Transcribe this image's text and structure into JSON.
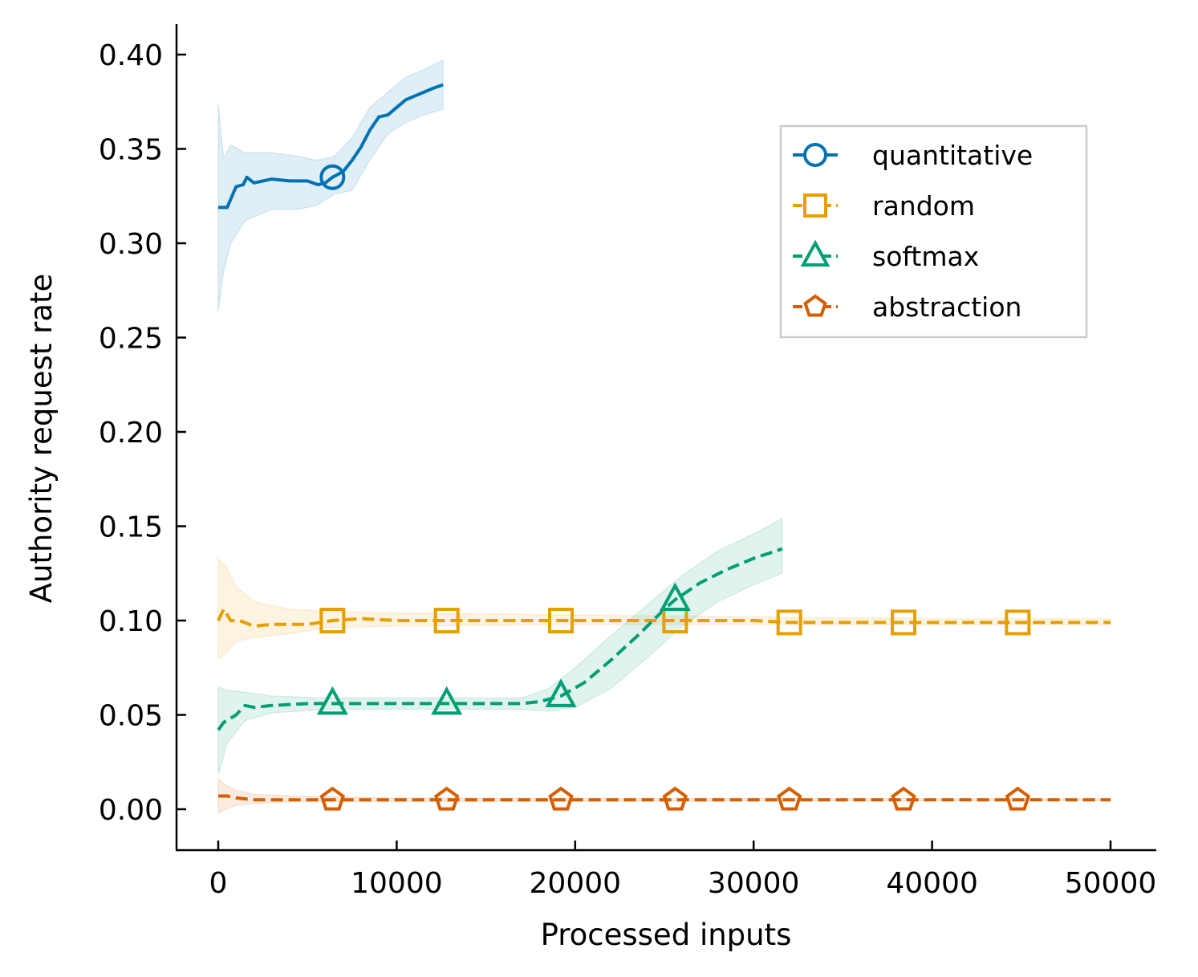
{
  "chart_data": {
    "type": "line",
    "title": "",
    "xlabel": "Processed inputs",
    "ylabel": "Authority request rate",
    "xlim": [
      -2400,
      52500
    ],
    "ylim": [
      -0.022,
      0.417
    ],
    "xticks": [
      0,
      10000,
      20000,
      30000,
      40000,
      50000
    ],
    "xtick_labels": [
      "0",
      "10000",
      "20000",
      "30000",
      "40000",
      "50000"
    ],
    "yticks": [
      0.0,
      0.05,
      0.1,
      0.15,
      0.2,
      0.25,
      0.3,
      0.35,
      0.4
    ],
    "ytick_labels": [
      "0.00",
      "0.05",
      "0.10",
      "0.15",
      "0.20",
      "0.25",
      "0.30",
      "0.35",
      "0.40"
    ],
    "grid": false,
    "legend_position": "upper-right",
    "series": [
      {
        "name": "quantitative",
        "color": "#0072b2",
        "dash": "solid",
        "marker": "circle",
        "markers_x": [
          6400
        ],
        "points": [
          [
            0,
            0.319
          ],
          [
            500,
            0.319
          ],
          [
            1000,
            0.33
          ],
          [
            1400,
            0.331
          ],
          [
            1600,
            0.335
          ],
          [
            2000,
            0.332
          ],
          [
            3000,
            0.334
          ],
          [
            4000,
            0.333
          ],
          [
            5000,
            0.333
          ],
          [
            5600,
            0.331
          ],
          [
            6000,
            0.332
          ],
          [
            6400,
            0.335
          ],
          [
            7000,
            0.338
          ],
          [
            7500,
            0.344
          ],
          [
            8000,
            0.351
          ],
          [
            8500,
            0.36
          ],
          [
            9000,
            0.367
          ],
          [
            9500,
            0.368
          ],
          [
            10000,
            0.372
          ],
          [
            10500,
            0.376
          ],
          [
            11000,
            0.378
          ],
          [
            11500,
            0.38
          ],
          [
            12000,
            0.382
          ],
          [
            12600,
            0.384
          ]
        ],
        "band": [
          [
            0,
            0.264,
            0.374
          ],
          [
            300,
            0.285,
            0.345
          ],
          [
            700,
            0.3,
            0.352
          ],
          [
            1500,
            0.312,
            0.348
          ],
          [
            3000,
            0.318,
            0.348
          ],
          [
            4500,
            0.318,
            0.346
          ],
          [
            5500,
            0.32,
            0.344
          ],
          [
            6500,
            0.326,
            0.346
          ],
          [
            7500,
            0.328,
            0.356
          ],
          [
            8500,
            0.344,
            0.372
          ],
          [
            9500,
            0.358,
            0.38
          ],
          [
            10500,
            0.364,
            0.388
          ],
          [
            11500,
            0.368,
            0.392
          ],
          [
            12600,
            0.371,
            0.397
          ]
        ]
      },
      {
        "name": "random",
        "color": "#e69f00",
        "dash": "dashed",
        "marker": "square",
        "markers_x": [
          6400,
          12800,
          19200,
          25600,
          32000,
          38400,
          44800
        ],
        "points": [
          [
            0,
            0.1
          ],
          [
            300,
            0.106
          ],
          [
            700,
            0.1
          ],
          [
            1200,
            0.1
          ],
          [
            2000,
            0.097
          ],
          [
            3000,
            0.098
          ],
          [
            5000,
            0.098
          ],
          [
            6400,
            0.1
          ],
          [
            8000,
            0.101
          ],
          [
            10000,
            0.1
          ],
          [
            12800,
            0.1
          ],
          [
            15000,
            0.1
          ],
          [
            19200,
            0.1
          ],
          [
            22000,
            0.1
          ],
          [
            25600,
            0.1
          ],
          [
            30000,
            0.1
          ],
          [
            32000,
            0.099
          ],
          [
            38400,
            0.099
          ],
          [
            44800,
            0.099
          ],
          [
            50000,
            0.099
          ]
        ],
        "band": [
          [
            0,
            0.08,
            0.133
          ],
          [
            500,
            0.083,
            0.128
          ],
          [
            1000,
            0.089,
            0.118
          ],
          [
            2000,
            0.091,
            0.11
          ],
          [
            4000,
            0.093,
            0.106
          ],
          [
            6000,
            0.096,
            0.105
          ],
          [
            10000,
            0.097,
            0.104
          ],
          [
            20000,
            0.098,
            0.103
          ],
          [
            30000,
            0.098,
            0.102
          ],
          [
            40000,
            0.098,
            0.101
          ],
          [
            50000,
            0.098,
            0.101
          ]
        ]
      },
      {
        "name": "softmax",
        "color": "#009e73",
        "dash": "dashed",
        "marker": "triangle",
        "markers_x": [
          6400,
          12800,
          19200,
          25600
        ],
        "points": [
          [
            0,
            0.042
          ],
          [
            300,
            0.046
          ],
          [
            1000,
            0.05
          ],
          [
            1500,
            0.055
          ],
          [
            2000,
            0.054
          ],
          [
            3000,
            0.055
          ],
          [
            5000,
            0.056
          ],
          [
            6400,
            0.056
          ],
          [
            10000,
            0.056
          ],
          [
            12800,
            0.056
          ],
          [
            15000,
            0.056
          ],
          [
            17000,
            0.056
          ],
          [
            18000,
            0.057
          ],
          [
            19200,
            0.06
          ],
          [
            20500,
            0.067
          ],
          [
            22000,
            0.079
          ],
          [
            23500,
            0.092
          ],
          [
            25000,
            0.106
          ],
          [
            25600,
            0.111
          ],
          [
            27000,
            0.12
          ],
          [
            28500,
            0.127
          ],
          [
            30000,
            0.133
          ],
          [
            31600,
            0.138
          ]
        ],
        "band": [
          [
            0,
            0.018,
            0.065
          ],
          [
            500,
            0.035,
            0.063
          ],
          [
            1500,
            0.047,
            0.062
          ],
          [
            3000,
            0.051,
            0.06
          ],
          [
            6000,
            0.053,
            0.059
          ],
          [
            12000,
            0.053,
            0.059
          ],
          [
            17000,
            0.053,
            0.059
          ],
          [
            18500,
            0.052,
            0.064
          ],
          [
            20000,
            0.054,
            0.075
          ],
          [
            22000,
            0.064,
            0.092
          ],
          [
            24000,
            0.08,
            0.108
          ],
          [
            26000,
            0.097,
            0.124
          ],
          [
            28000,
            0.11,
            0.137
          ],
          [
            30000,
            0.119,
            0.146
          ],
          [
            31600,
            0.125,
            0.154
          ]
        ]
      },
      {
        "name": "abstraction",
        "color": "#d55e00",
        "dash": "dashed",
        "marker": "pentagon",
        "markers_x": [
          6400,
          12800,
          19200,
          25600,
          32000,
          38400,
          44800
        ],
        "points": [
          [
            0,
            0.007
          ],
          [
            500,
            0.007
          ],
          [
            1000,
            0.006
          ],
          [
            2000,
            0.005
          ],
          [
            3000,
            0.005
          ],
          [
            5000,
            0.005
          ],
          [
            10000,
            0.005
          ],
          [
            20000,
            0.005
          ],
          [
            30000,
            0.005
          ],
          [
            40000,
            0.005
          ],
          [
            50000,
            0.005
          ]
        ],
        "band": [
          [
            0,
            -0.002,
            0.016
          ],
          [
            400,
            0.0,
            0.013
          ],
          [
            1000,
            0.002,
            0.01
          ],
          [
            2000,
            0.003,
            0.008
          ],
          [
            4000,
            0.004,
            0.007
          ],
          [
            10000,
            0.004,
            0.006
          ],
          [
            50000,
            0.0045,
            0.0055
          ]
        ]
      }
    ]
  }
}
